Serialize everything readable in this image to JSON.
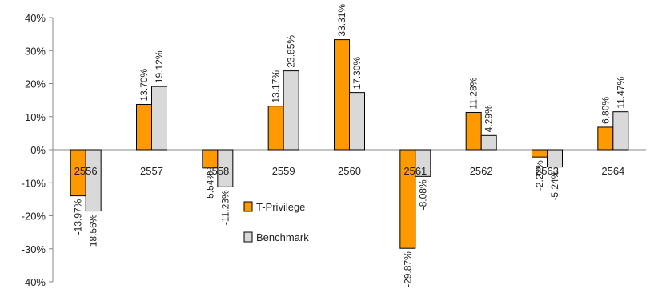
{
  "chart_data": {
    "type": "bar",
    "title": "",
    "xlabel": "",
    "ylabel": "",
    "categories": [
      "2556",
      "2557",
      "2558",
      "2559",
      "2560",
      "2561",
      "2562",
      "2563",
      "2564"
    ],
    "series": [
      {
        "name": "T-Privilege",
        "color": "#ff9900",
        "values": [
          -13.97,
          13.7,
          -5.54,
          13.17,
          33.31,
          -29.87,
          11.28,
          -2.22,
          6.8
        ],
        "labels": [
          "-13.97%",
          "13.70%",
          "-5.54%",
          "13.17%",
          "33.31%",
          "-29.87%",
          "11.28%",
          "-2.22%",
          "6.80%"
        ]
      },
      {
        "name": "Benchmark",
        "color": "#d9d9d9",
        "values": [
          -18.56,
          19.12,
          -11.23,
          23.85,
          17.3,
          -8.08,
          4.29,
          -5.24,
          11.47
        ],
        "labels": [
          "-18.56%",
          "19.12%",
          "-11.23%",
          "23.85%",
          "17.30%",
          "-8.08%",
          "4.29%",
          "-5.24%",
          "11.47%"
        ]
      }
    ],
    "ylim": [
      -40,
      40
    ],
    "yticks": [
      "40%",
      "30%",
      "20%",
      "10%",
      "0%",
      "-10%",
      "-20%",
      "-30%",
      "-40%"
    ],
    "ytick_values": [
      40,
      30,
      20,
      10,
      0,
      -10,
      -20,
      -30,
      -40
    ],
    "legend": {
      "placement": "center"
    },
    "grid": false
  }
}
